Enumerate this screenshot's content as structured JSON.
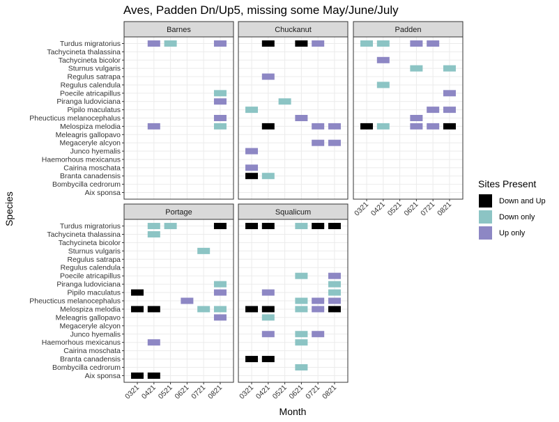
{
  "chart_data": {
    "type": "heatmap",
    "title": "Aves, Padden Dn/Up5, missing some May/June/July",
    "xlabel": "Month",
    "ylabel": "Species",
    "x_categories": [
      "0321",
      "0421",
      "0521",
      "0621",
      "0721",
      "0821"
    ],
    "y_categories": [
      "Turdus migratorius",
      "Tachycineta thalassina",
      "Tachycineta bicolor",
      "Sturnus vulgaris",
      "Regulus satrapa",
      "Regulus calendula",
      "Poecile atricapillus",
      "Piranga ludoviciana",
      "Pipilo maculatus",
      "Pheucticus melanocephalus",
      "Melospiza melodia",
      "Meleagris gallopavo",
      "Megaceryle alcyon",
      "Junco hyemalis",
      "Haemorhous mexicanus",
      "Cairina moschata",
      "Branta canadensis",
      "Bombycilla cedrorum",
      "Aix sponsa"
    ],
    "legend": {
      "title": "Sites Present",
      "position": "right",
      "entries": [
        {
          "key": "both",
          "label": "Down and Up",
          "color": "#000000"
        },
        {
          "key": "down",
          "label": "Down only",
          "color": "#8cc4c4"
        },
        {
          "key": "up",
          "label": "Up only",
          "color": "#8d87c4"
        }
      ]
    },
    "grid": true,
    "panels": [
      {
        "name": "Barnes",
        "cells": [
          {
            "species": "Turdus migratorius",
            "month": "0421",
            "status": "up"
          },
          {
            "species": "Turdus migratorius",
            "month": "0521",
            "status": "down"
          },
          {
            "species": "Turdus migratorius",
            "month": "0821",
            "status": "up"
          },
          {
            "species": "Poecile atricapillus",
            "month": "0821",
            "status": "down"
          },
          {
            "species": "Piranga ludoviciana",
            "month": "0821",
            "status": "up"
          },
          {
            "species": "Pheucticus melanocephalus",
            "month": "0821",
            "status": "up"
          },
          {
            "species": "Melospiza melodia",
            "month": "0421",
            "status": "up"
          },
          {
            "species": "Melospiza melodia",
            "month": "0821",
            "status": "down"
          }
        ]
      },
      {
        "name": "Chuckanut",
        "cells": [
          {
            "species": "Turdus migratorius",
            "month": "0421",
            "status": "both"
          },
          {
            "species": "Turdus migratorius",
            "month": "0621",
            "status": "both"
          },
          {
            "species": "Turdus migratorius",
            "month": "0721",
            "status": "up"
          },
          {
            "species": "Regulus satrapa",
            "month": "0421",
            "status": "up"
          },
          {
            "species": "Piranga ludoviciana",
            "month": "0521",
            "status": "down"
          },
          {
            "species": "Pipilo maculatus",
            "month": "0321",
            "status": "down"
          },
          {
            "species": "Pheucticus melanocephalus",
            "month": "0621",
            "status": "up"
          },
          {
            "species": "Melospiza melodia",
            "month": "0421",
            "status": "both"
          },
          {
            "species": "Melospiza melodia",
            "month": "0721",
            "status": "up"
          },
          {
            "species": "Melospiza melodia",
            "month": "0821",
            "status": "up"
          },
          {
            "species": "Megaceryle alcyon",
            "month": "0721",
            "status": "up"
          },
          {
            "species": "Megaceryle alcyon",
            "month": "0821",
            "status": "up"
          },
          {
            "species": "Junco hyemalis",
            "month": "0321",
            "status": "up"
          },
          {
            "species": "Cairina moschata",
            "month": "0321",
            "status": "up"
          },
          {
            "species": "Branta canadensis",
            "month": "0321",
            "status": "both"
          },
          {
            "species": "Branta canadensis",
            "month": "0421",
            "status": "down"
          }
        ]
      },
      {
        "name": "Padden",
        "cells": [
          {
            "species": "Turdus migratorius",
            "month": "0321",
            "status": "down"
          },
          {
            "species": "Turdus migratorius",
            "month": "0421",
            "status": "down"
          },
          {
            "species": "Turdus migratorius",
            "month": "0621",
            "status": "up"
          },
          {
            "species": "Turdus migratorius",
            "month": "0721",
            "status": "up"
          },
          {
            "species": "Tachycineta bicolor",
            "month": "0421",
            "status": "up"
          },
          {
            "species": "Sturnus vulgaris",
            "month": "0621",
            "status": "down"
          },
          {
            "species": "Sturnus vulgaris",
            "month": "0821",
            "status": "down"
          },
          {
            "species": "Regulus calendula",
            "month": "0421",
            "status": "down"
          },
          {
            "species": "Poecile atricapillus",
            "month": "0821",
            "status": "up"
          },
          {
            "species": "Pipilo maculatus",
            "month": "0721",
            "status": "up"
          },
          {
            "species": "Pipilo maculatus",
            "month": "0821",
            "status": "up"
          },
          {
            "species": "Pheucticus melanocephalus",
            "month": "0621",
            "status": "up"
          },
          {
            "species": "Melospiza melodia",
            "month": "0321",
            "status": "both"
          },
          {
            "species": "Melospiza melodia",
            "month": "0421",
            "status": "down"
          },
          {
            "species": "Melospiza melodia",
            "month": "0621",
            "status": "up"
          },
          {
            "species": "Melospiza melodia",
            "month": "0721",
            "status": "up"
          },
          {
            "species": "Melospiza melodia",
            "month": "0821",
            "status": "both"
          }
        ]
      },
      {
        "name": "Portage",
        "cells": [
          {
            "species": "Turdus migratorius",
            "month": "0421",
            "status": "down"
          },
          {
            "species": "Turdus migratorius",
            "month": "0521",
            "status": "down"
          },
          {
            "species": "Turdus migratorius",
            "month": "0821",
            "status": "both"
          },
          {
            "species": "Tachycineta thalassina",
            "month": "0421",
            "status": "down"
          },
          {
            "species": "Sturnus vulgaris",
            "month": "0721",
            "status": "down"
          },
          {
            "species": "Piranga ludoviciana",
            "month": "0821",
            "status": "down"
          },
          {
            "species": "Pipilo maculatus",
            "month": "0321",
            "status": "both"
          },
          {
            "species": "Pipilo maculatus",
            "month": "0821",
            "status": "up"
          },
          {
            "species": "Pheucticus melanocephalus",
            "month": "0621",
            "status": "up"
          },
          {
            "species": "Melospiza melodia",
            "month": "0321",
            "status": "both"
          },
          {
            "species": "Melospiza melodia",
            "month": "0421",
            "status": "both"
          },
          {
            "species": "Melospiza melodia",
            "month": "0721",
            "status": "down"
          },
          {
            "species": "Melospiza melodia",
            "month": "0821",
            "status": "down"
          },
          {
            "species": "Meleagris gallopavo",
            "month": "0821",
            "status": "up"
          },
          {
            "species": "Haemorhous mexicanus",
            "month": "0421",
            "status": "up"
          },
          {
            "species": "Aix sponsa",
            "month": "0321",
            "status": "both"
          },
          {
            "species": "Aix sponsa",
            "month": "0421",
            "status": "both"
          }
        ]
      },
      {
        "name": "Squalicum",
        "cells": [
          {
            "species": "Turdus migratorius",
            "month": "0321",
            "status": "both"
          },
          {
            "species": "Turdus migratorius",
            "month": "0421",
            "status": "both"
          },
          {
            "species": "Turdus migratorius",
            "month": "0621",
            "status": "down"
          },
          {
            "species": "Turdus migratorius",
            "month": "0721",
            "status": "both"
          },
          {
            "species": "Turdus migratorius",
            "month": "0821",
            "status": "both"
          },
          {
            "species": "Poecile atricapillus",
            "month": "0621",
            "status": "down"
          },
          {
            "species": "Poecile atricapillus",
            "month": "0821",
            "status": "up"
          },
          {
            "species": "Piranga ludoviciana",
            "month": "0821",
            "status": "down"
          },
          {
            "species": "Pipilo maculatus",
            "month": "0421",
            "status": "up"
          },
          {
            "species": "Pipilo maculatus",
            "month": "0821",
            "status": "down"
          },
          {
            "species": "Pheucticus melanocephalus",
            "month": "0621",
            "status": "down"
          },
          {
            "species": "Pheucticus melanocephalus",
            "month": "0721",
            "status": "up"
          },
          {
            "species": "Pheucticus melanocephalus",
            "month": "0821",
            "status": "up"
          },
          {
            "species": "Melospiza melodia",
            "month": "0321",
            "status": "both"
          },
          {
            "species": "Melospiza melodia",
            "month": "0421",
            "status": "both"
          },
          {
            "species": "Melospiza melodia",
            "month": "0621",
            "status": "down"
          },
          {
            "species": "Melospiza melodia",
            "month": "0721",
            "status": "up"
          },
          {
            "species": "Melospiza melodia",
            "month": "0821",
            "status": "both"
          },
          {
            "species": "Meleagris gallopavo",
            "month": "0421",
            "status": "down"
          },
          {
            "species": "Junco hyemalis",
            "month": "0421",
            "status": "up"
          },
          {
            "species": "Junco hyemalis",
            "month": "0621",
            "status": "down"
          },
          {
            "species": "Junco hyemalis",
            "month": "0721",
            "status": "up"
          },
          {
            "species": "Haemorhous mexicanus",
            "month": "0621",
            "status": "down"
          },
          {
            "species": "Branta canadensis",
            "month": "0321",
            "status": "both"
          },
          {
            "species": "Branta canadensis",
            "month": "0421",
            "status": "both"
          },
          {
            "species": "Bombycilla cedrorum",
            "month": "0621",
            "status": "down"
          }
        ]
      }
    ]
  }
}
